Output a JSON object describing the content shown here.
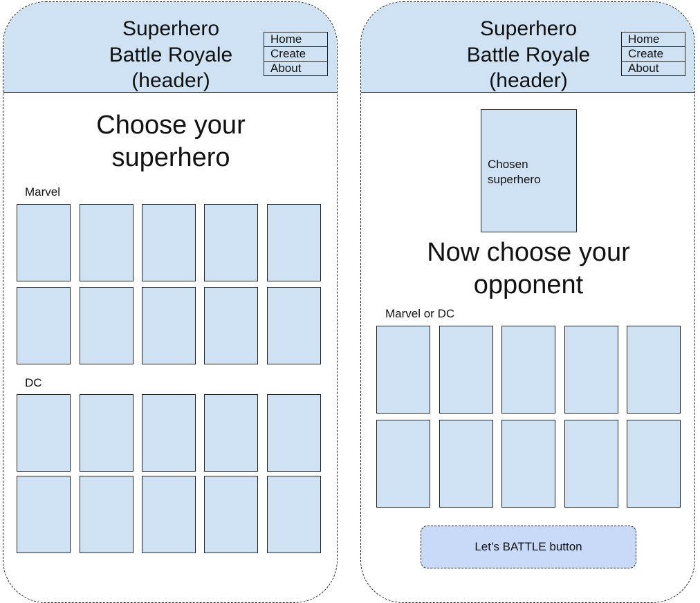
{
  "left_screen": {
    "header": {
      "title": "Superhero\nBattle Royale\n(header)",
      "nav": [
        "Home",
        "Create",
        "About"
      ]
    },
    "heading": "Choose your\nsuperhero",
    "sections": [
      {
        "label": "Marvel"
      },
      {
        "label": "DC"
      }
    ]
  },
  "right_screen": {
    "header": {
      "title": "Superhero\nBattle Royale\n(header)",
      "nav": [
        "Home",
        "Create",
        "About"
      ]
    },
    "chosen_card": "Chosen\nsuperhero",
    "heading": "Now choose your\nopponent",
    "section_label": "Marvel or DC",
    "battle_button": "Let’s BATTLE button"
  },
  "colors": {
    "header_fill": "#cfe2f3",
    "card_fill": "#cfe2f3",
    "button_fill": "#c9daf8",
    "outline": "#222222"
  }
}
